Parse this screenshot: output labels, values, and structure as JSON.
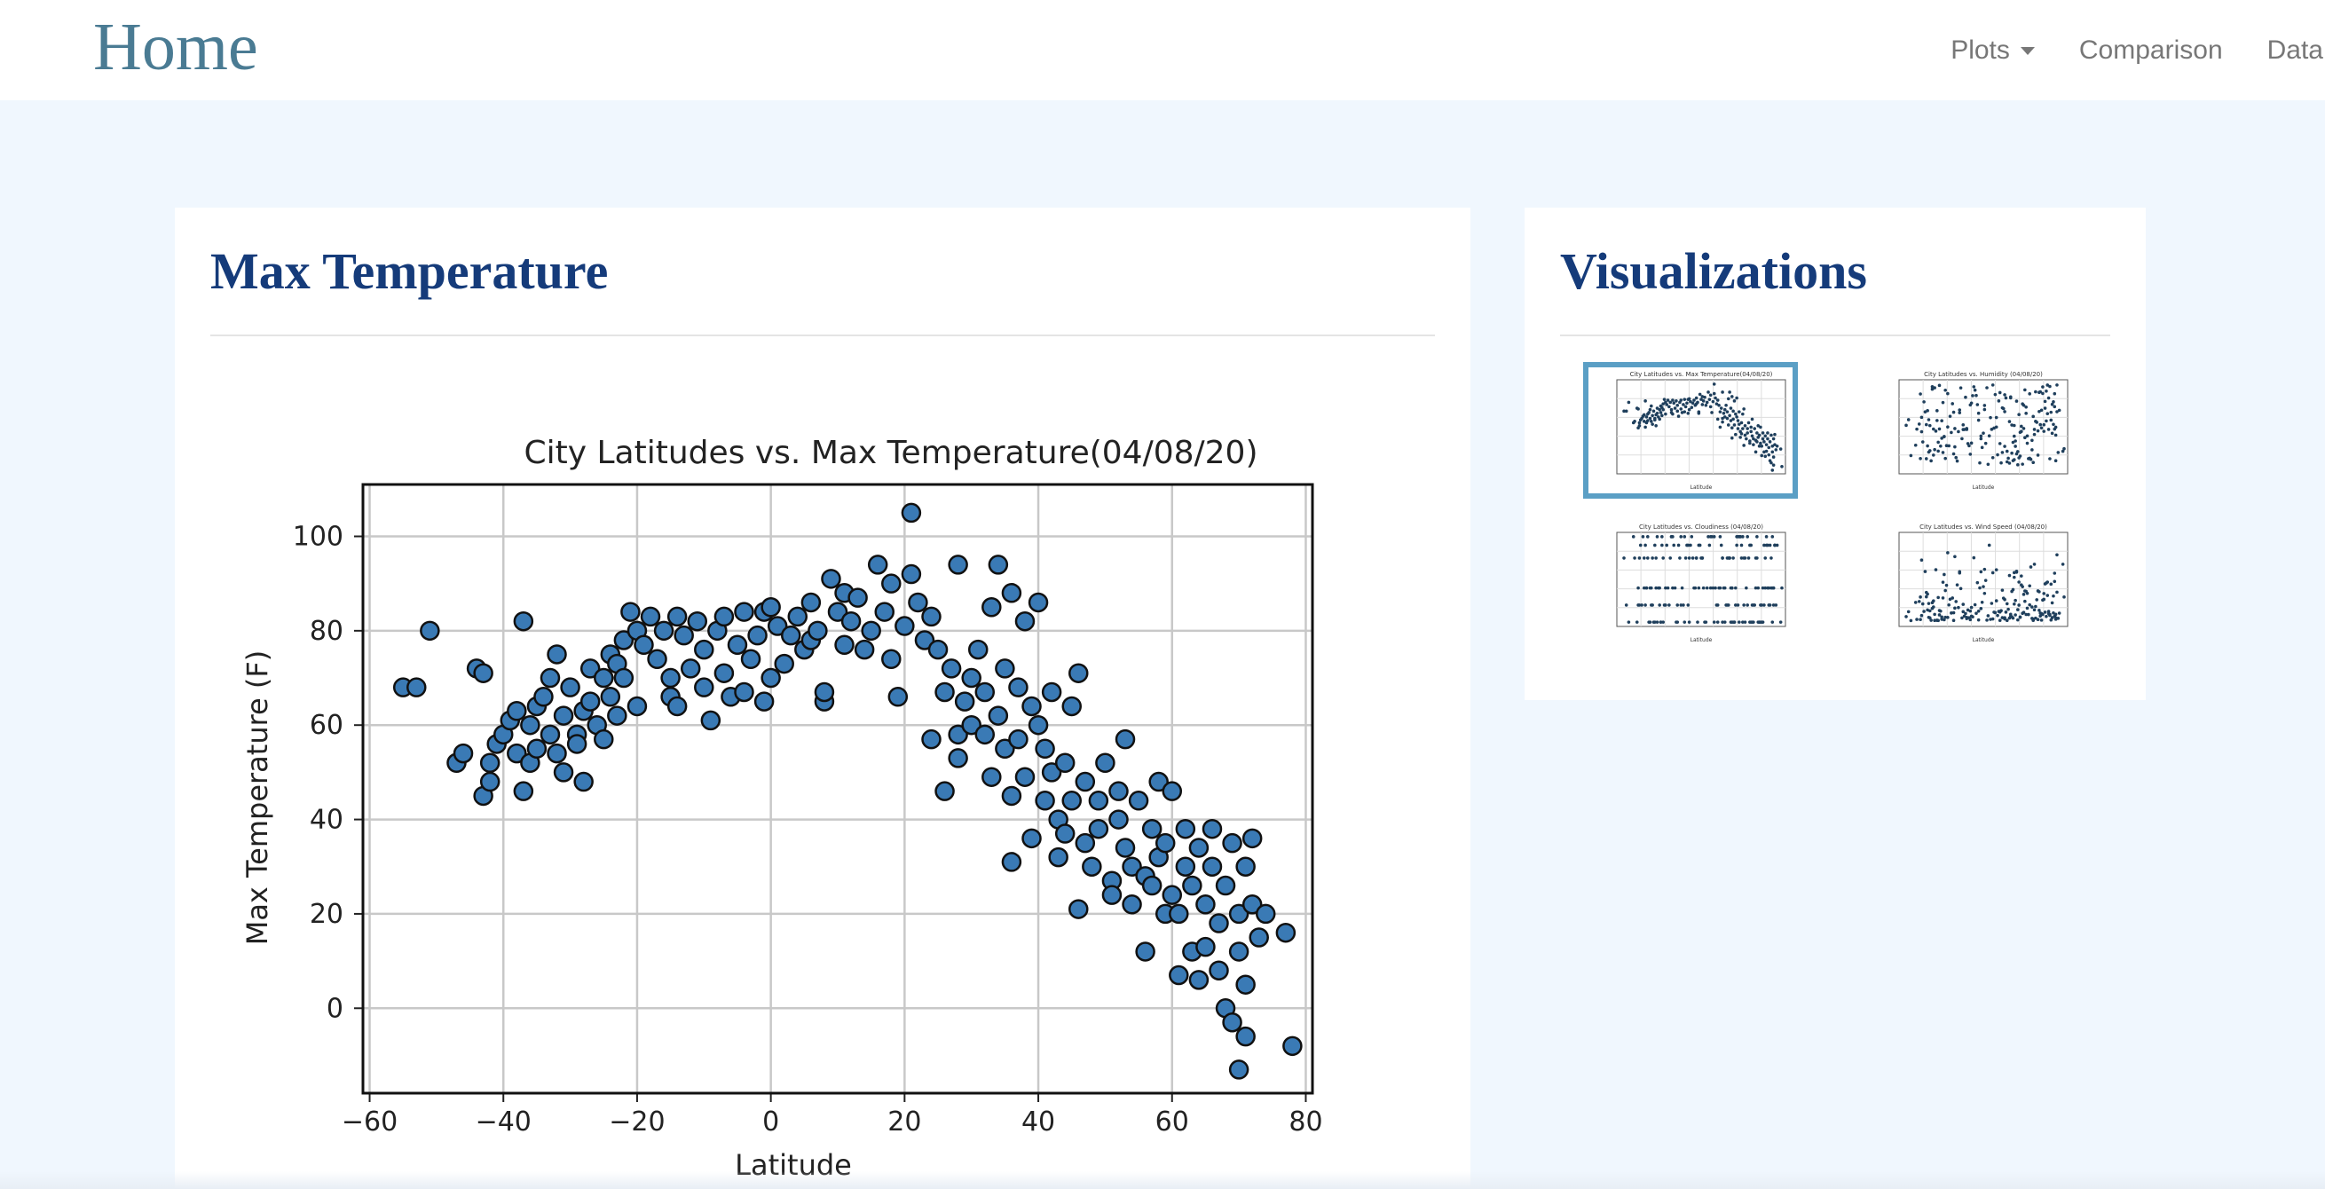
{
  "nav": {
    "brand": "Home",
    "items": [
      {
        "label": "Plots",
        "dropdown": true
      },
      {
        "label": "Comparison"
      },
      {
        "label": "Data"
      }
    ]
  },
  "main_panel": {
    "heading": "Max Temperature"
  },
  "side_panel": {
    "heading": "Visualizations",
    "thumbnails": [
      {
        "title": "City Latitudes vs. Max Temperature(04/08/20)",
        "active": true
      },
      {
        "title": "City Latitudes vs. Humidity (04/08/20)",
        "active": false
      },
      {
        "title": "City Latitudes vs. Cloudiness (04/08/20)",
        "active": false
      },
      {
        "title": "City Latitudes vs. Wind Speed (04/08/20)",
        "active": false
      }
    ]
  },
  "colors": {
    "brand": "#4a7b93",
    "heading": "#153b7a",
    "page_bg": "#f0f7fe",
    "marker": "#3a7ab5",
    "active_thumb": "#5b9fc5"
  },
  "chart_data": {
    "type": "scatter",
    "title": "City Latitudes vs. Max Temperature(04/08/20)",
    "xlabel": "Latitude",
    "ylabel": "Max Temperature (F)",
    "xlim": [
      -61,
      81
    ],
    "ylim": [
      -18,
      111
    ],
    "xticks": [
      -60,
      -40,
      -20,
      0,
      20,
      40,
      60,
      80
    ],
    "yticks": [
      0,
      20,
      40,
      60,
      80,
      100
    ],
    "grid": true,
    "points": [
      [
        -55,
        68
      ],
      [
        -53,
        68
      ],
      [
        -51,
        80
      ],
      [
        -47,
        52
      ],
      [
        -46,
        54
      ],
      [
        -44,
        72
      ],
      [
        -43,
        71
      ],
      [
        -43,
        45
      ],
      [
        -42,
        48
      ],
      [
        -42,
        52
      ],
      [
        -41,
        56
      ],
      [
        -40,
        58
      ],
      [
        -39,
        61
      ],
      [
        -38,
        54
      ],
      [
        -38,
        63
      ],
      [
        -37,
        46
      ],
      [
        -37,
        82
      ],
      [
        -36,
        52
      ],
      [
        -36,
        60
      ],
      [
        -35,
        64
      ],
      [
        -35,
        55
      ],
      [
        -34,
        66
      ],
      [
        -33,
        70
      ],
      [
        -33,
        58
      ],
      [
        -32,
        54
      ],
      [
        -32,
        75
      ],
      [
        -31,
        50
      ],
      [
        -31,
        62
      ],
      [
        -30,
        68
      ],
      [
        -29,
        58
      ],
      [
        -29,
        56
      ],
      [
        -28,
        63
      ],
      [
        -28,
        48
      ],
      [
        -27,
        72
      ],
      [
        -27,
        65
      ],
      [
        -26,
        60
      ],
      [
        -25,
        70
      ],
      [
        -25,
        57
      ],
      [
        -24,
        66
      ],
      [
        -24,
        75
      ],
      [
        -23,
        62
      ],
      [
        -23,
        73
      ],
      [
        -22,
        78
      ],
      [
        -22,
        70
      ],
      [
        -21,
        84
      ],
      [
        -20,
        64
      ],
      [
        -20,
        80
      ],
      [
        -19,
        77
      ],
      [
        -18,
        83
      ],
      [
        -17,
        74
      ],
      [
        -16,
        80
      ],
      [
        -15,
        66
      ],
      [
        -15,
        70
      ],
      [
        -14,
        83
      ],
      [
        -14,
        64
      ],
      [
        -13,
        79
      ],
      [
        -12,
        72
      ],
      [
        -11,
        82
      ],
      [
        -10,
        68
      ],
      [
        -10,
        76
      ],
      [
        -9,
        61
      ],
      [
        -8,
        80
      ],
      [
        -7,
        71
      ],
      [
        -7,
        83
      ],
      [
        -6,
        66
      ],
      [
        -5,
        77
      ],
      [
        -4,
        84
      ],
      [
        -4,
        67
      ],
      [
        -3,
        74
      ],
      [
        -2,
        79
      ],
      [
        -1,
        65
      ],
      [
        -1,
        84
      ],
      [
        0,
        70
      ],
      [
        0,
        85
      ],
      [
        1,
        81
      ],
      [
        2,
        73
      ],
      [
        3,
        79
      ],
      [
        4,
        83
      ],
      [
        5,
        76
      ],
      [
        6,
        78
      ],
      [
        6,
        86
      ],
      [
        7,
        80
      ],
      [
        8,
        65
      ],
      [
        8,
        67
      ],
      [
        9,
        91
      ],
      [
        10,
        84
      ],
      [
        11,
        88
      ],
      [
        11,
        77
      ],
      [
        12,
        82
      ],
      [
        13,
        87
      ],
      [
        14,
        76
      ],
      [
        15,
        80
      ],
      [
        16,
        94
      ],
      [
        17,
        84
      ],
      [
        18,
        90
      ],
      [
        18,
        74
      ],
      [
        19,
        66
      ],
      [
        20,
        81
      ],
      [
        21,
        92
      ],
      [
        21,
        105
      ],
      [
        22,
        86
      ],
      [
        23,
        78
      ],
      [
        24,
        57
      ],
      [
        24,
        83
      ],
      [
        25,
        76
      ],
      [
        26,
        67
      ],
      [
        26,
        46
      ],
      [
        27,
        72
      ],
      [
        28,
        58
      ],
      [
        28,
        53
      ],
      [
        28,
        94
      ],
      [
        29,
        65
      ],
      [
        30,
        70
      ],
      [
        30,
        60
      ],
      [
        31,
        76
      ],
      [
        32,
        58
      ],
      [
        32,
        67
      ],
      [
        33,
        49
      ],
      [
        33,
        85
      ],
      [
        34,
        62
      ],
      [
        34,
        94
      ],
      [
        35,
        72
      ],
      [
        35,
        55
      ],
      [
        36,
        31
      ],
      [
        36,
        45
      ],
      [
        36,
        88
      ],
      [
        37,
        68
      ],
      [
        37,
        57
      ],
      [
        38,
        82
      ],
      [
        38,
        49
      ],
      [
        39,
        64
      ],
      [
        39,
        36
      ],
      [
        40,
        60
      ],
      [
        40,
        86
      ],
      [
        41,
        44
      ],
      [
        41,
        55
      ],
      [
        42,
        50
      ],
      [
        42,
        67
      ],
      [
        43,
        40
      ],
      [
        43,
        32
      ],
      [
        44,
        52
      ],
      [
        44,
        37
      ],
      [
        45,
        44
      ],
      [
        45,
        64
      ],
      [
        46,
        21
      ],
      [
        46,
        71
      ],
      [
        47,
        35
      ],
      [
        47,
        48
      ],
      [
        48,
        30
      ],
      [
        49,
        44
      ],
      [
        49,
        38
      ],
      [
        50,
        52
      ],
      [
        51,
        27
      ],
      [
        51,
        24
      ],
      [
        52,
        40
      ],
      [
        52,
        46
      ],
      [
        53,
        34
      ],
      [
        53,
        57
      ],
      [
        54,
        22
      ],
      [
        54,
        30
      ],
      [
        55,
        44
      ],
      [
        56,
        28
      ],
      [
        56,
        12
      ],
      [
        57,
        38
      ],
      [
        57,
        26
      ],
      [
        58,
        48
      ],
      [
        58,
        32
      ],
      [
        59,
        20
      ],
      [
        59,
        35
      ],
      [
        60,
        46
      ],
      [
        60,
        24
      ],
      [
        61,
        7
      ],
      [
        61,
        20
      ],
      [
        62,
        30
      ],
      [
        62,
        38
      ],
      [
        63,
        12
      ],
      [
        63,
        26
      ],
      [
        64,
        34
      ],
      [
        64,
        6
      ],
      [
        65,
        22
      ],
      [
        65,
        13
      ],
      [
        66,
        30
      ],
      [
        66,
        38
      ],
      [
        67,
        18
      ],
      [
        67,
        8
      ],
      [
        68,
        0
      ],
      [
        68,
        26
      ],
      [
        69,
        35
      ],
      [
        69,
        -3
      ],
      [
        70,
        12
      ],
      [
        70,
        20
      ],
      [
        70,
        -13
      ],
      [
        71,
        5
      ],
      [
        71,
        -6
      ],
      [
        71,
        30
      ],
      [
        72,
        22
      ],
      [
        72,
        36
      ],
      [
        73,
        15
      ],
      [
        74,
        20
      ],
      [
        77,
        16
      ],
      [
        78,
        -8
      ]
    ]
  }
}
